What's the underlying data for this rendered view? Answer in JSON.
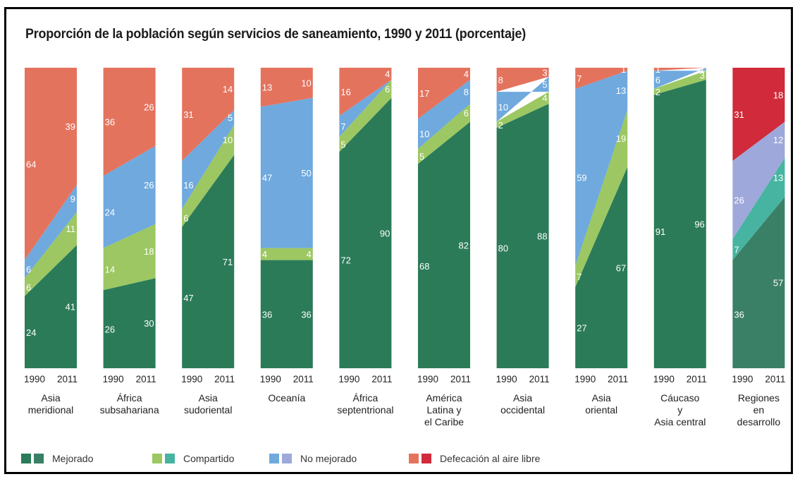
{
  "title": "Proporción de la población según servicios de saneamiento, 1990 y 2011 (porcentaje)",
  "chart_data": {
    "type": "area",
    "stacking": "percent",
    "years": [
      "1990",
      "2011"
    ],
    "series_order": [
      "Mejorado",
      "Compartido",
      "No mejorado",
      "Defecación al aire libre"
    ],
    "colors": {
      "Mejorado": "#2b7b58",
      "Compartido": "#9cc762",
      "No mejorado": "#6fa9de",
      "Defecación al aire libre": "#e4735e",
      "Mejorado_alt": "#3a8066",
      "Compartido_alt": "#46b4a0",
      "No mejorado_alt": "#9ea8da",
      "Defecación al aire libre_alt": "#d02a3b"
    },
    "regions": [
      {
        "label": [
          "Asia",
          "meridional"
        ],
        "values": {
          "1990": [
            24,
            6,
            6,
            64
          ],
          "2011": [
            41,
            11,
            9,
            39
          ]
        }
      },
      {
        "label": [
          "África",
          "subsahariana"
        ],
        "values": {
          "1990": [
            26,
            14,
            24,
            36
          ],
          "2011": [
            30,
            18,
            26,
            26
          ]
        }
      },
      {
        "label": [
          "Asia",
          "sudoriental"
        ],
        "values": {
          "1990": [
            47,
            6,
            16,
            31
          ],
          "2011": [
            71,
            10,
            5,
            14
          ]
        }
      },
      {
        "label": [
          "Oceanía"
        ],
        "values": {
          "1990": [
            36,
            4,
            47,
            13
          ],
          "2011": [
            36,
            4,
            50,
            10
          ]
        }
      },
      {
        "label": [
          "África",
          "septentrional"
        ],
        "values": {
          "1990": [
            72,
            5,
            7,
            16
          ],
          "2011": [
            90,
            6,
            0,
            4
          ]
        }
      },
      {
        "label": [
          "América",
          "Latina y",
          "el Caribe"
        ],
        "values": {
          "1990": [
            68,
            5,
            10,
            17
          ],
          "2011": [
            82,
            6,
            8,
            4
          ]
        }
      },
      {
        "label": [
          "Asia",
          "occidental"
        ],
        "values": {
          "1990": [
            80,
            2,
            10,
            8
          ],
          "2011": [
            88,
            4,
            5,
            3
          ]
        }
      },
      {
        "label": [
          "Asia",
          "oriental"
        ],
        "values": {
          "1990": [
            27,
            7,
            59,
            7
          ],
          "2011": [
            67,
            19,
            13,
            1
          ]
        }
      },
      {
        "label": [
          "Cáucaso",
          "y",
          "Asia central"
        ],
        "values": {
          "1990": [
            91,
            2,
            6,
            1
          ],
          "2011": [
            96,
            3,
            1,
            0
          ]
        }
      },
      {
        "label": [
          "Regiones",
          "en",
          "desarrollo"
        ],
        "alt_colors": true,
        "values": {
          "1990": [
            36,
            7,
            26,
            31
          ],
          "2011": [
            57,
            13,
            12,
            18
          ]
        }
      }
    ],
    "data_labels": [
      {
        "1990": [
          "24",
          "6",
          "6",
          "64"
        ],
        "2011": [
          "41",
          "11",
          "9",
          "39"
        ]
      },
      {
        "1990": [
          "26",
          "14",
          "24",
          "36"
        ],
        "2011": [
          "30",
          "18",
          "26",
          "26"
        ]
      },
      {
        "1990": [
          "47",
          "6",
          "16",
          "31"
        ],
        "2011": [
          "71",
          "10",
          "5",
          "14"
        ]
      },
      {
        "1990": [
          "36",
          "4",
          "47",
          "13"
        ],
        "2011": [
          "36",
          "4",
          "50",
          "10"
        ]
      },
      {
        "1990": [
          "72",
          "5",
          "7",
          "16"
        ],
        "2011": [
          "90",
          "6",
          "",
          "4"
        ]
      },
      {
        "1990": [
          "68",
          "5",
          "10",
          "17"
        ],
        "2011": [
          "82",
          "6",
          "8",
          "4"
        ]
      },
      {
        "1990": [
          "80",
          "2",
          "10",
          "8"
        ],
        "2011": [
          "88",
          "4",
          "5",
          "3"
        ]
      },
      {
        "1990": [
          "27",
          "7",
          "59",
          "7"
        ],
        "2011": [
          "67",
          "19",
          "13",
          "1"
        ]
      },
      {
        "1990": [
          "91",
          "2",
          "6",
          "1"
        ],
        "2011": [
          "96",
          "3",
          "1",
          ""
        ]
      },
      {
        "1990": [
          "36",
          "7",
          "26",
          "31"
        ],
        "2011": [
          "57",
          "13",
          "12",
          "18"
        ]
      }
    ],
    "ylim": [
      0,
      100
    ]
  },
  "legend": [
    {
      "label": "Mejorado",
      "colors": [
        "#2b7b58",
        "#3a8066"
      ]
    },
    {
      "label": "Compartido",
      "colors": [
        "#9cc762",
        "#46b4a0"
      ]
    },
    {
      "label": "No mejorado",
      "colors": [
        "#6fa9de",
        "#9ea8da"
      ]
    },
    {
      "label": "Defecación al aire libre",
      "colors": [
        "#e4735e",
        "#d02a3b"
      ]
    }
  ]
}
